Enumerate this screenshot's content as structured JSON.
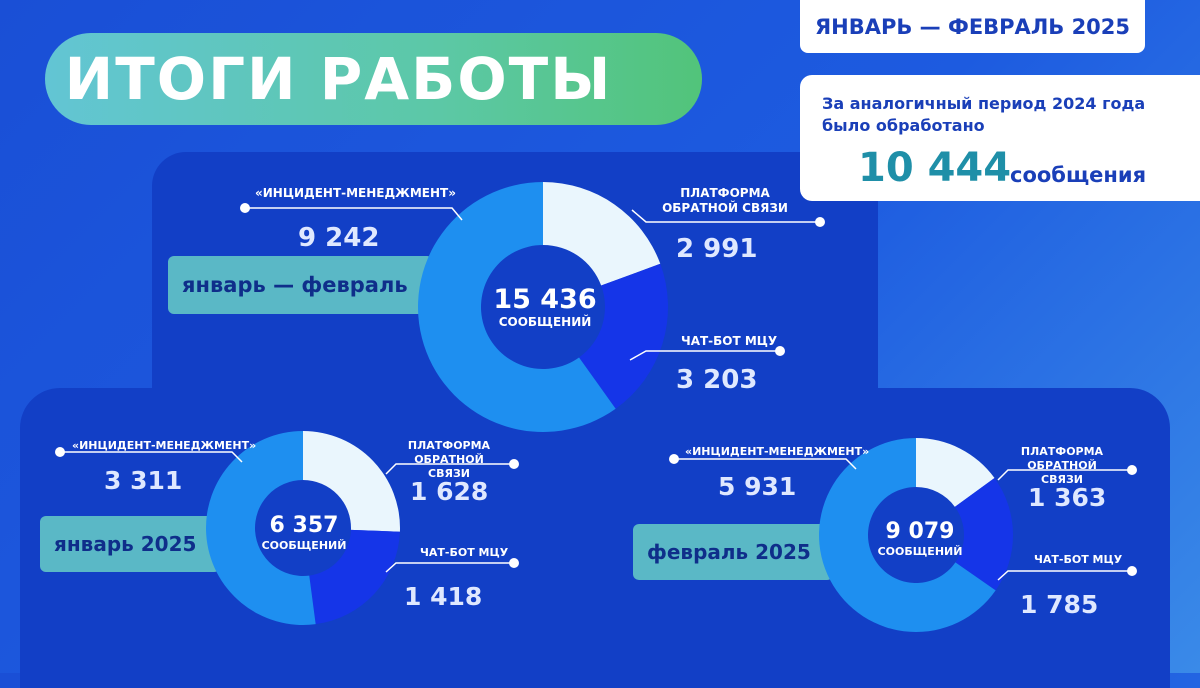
{
  "title": "ИТОГИ РАБОТЫ",
  "period_badge": "ЯНВАРЬ — ФЕВРАЛЬ 2025",
  "comparison": {
    "text": "За аналогичный период 2024 года было обработано",
    "number": "10 444",
    "unit": "сообщения"
  },
  "colors": {
    "incident": "#1e8ff0",
    "platform": "#eaf6fd",
    "chatbot": "#1535e8",
    "panel": "#123fc6",
    "label_bg": "#5ab8c6"
  },
  "chart_data": [
    {
      "type": "pie",
      "period": "январь — февраль",
      "total": "15 436",
      "total_unit": "СООБЩЕНИЙ",
      "labels": [
        "«ИНЦИДЕНТ-МЕНЕДЖМЕНТ»",
        "ПЛАТФОРМА ОБРАТНОЙ СВЯЗИ",
        "ЧАТ-БОТ МЦУ"
      ],
      "values": [
        9242,
        2991,
        3203
      ],
      "value_labels": [
        "9 242",
        "2 991",
        "3 203"
      ]
    },
    {
      "type": "pie",
      "period": "январь 2025",
      "total": "6 357",
      "total_unit": "СООБЩЕНИЙ",
      "labels": [
        "«ИНЦИДЕНТ-МЕНЕДЖМЕНТ»",
        "ПЛАТФОРМА ОБРАТНОЙ СВЯЗИ",
        "ЧАТ-БОТ МЦУ"
      ],
      "values": [
        3311,
        1628,
        1418
      ],
      "value_labels": [
        "3 311",
        "1 628",
        "1 418"
      ]
    },
    {
      "type": "pie",
      "period": "февраль 2025",
      "total": "9 079",
      "total_unit": "СООБЩЕНИЙ",
      "labels": [
        "«ИНЦИДЕНТ-МЕНЕДЖМЕНТ»",
        "ПЛАТФОРМА ОБРАТНОЙ СВЯЗИ",
        "ЧАТ-БОТ МЦУ"
      ],
      "values": [
        5931,
        1363,
        1785
      ],
      "value_labels": [
        "5 931",
        "1 363",
        "1 785"
      ]
    }
  ]
}
